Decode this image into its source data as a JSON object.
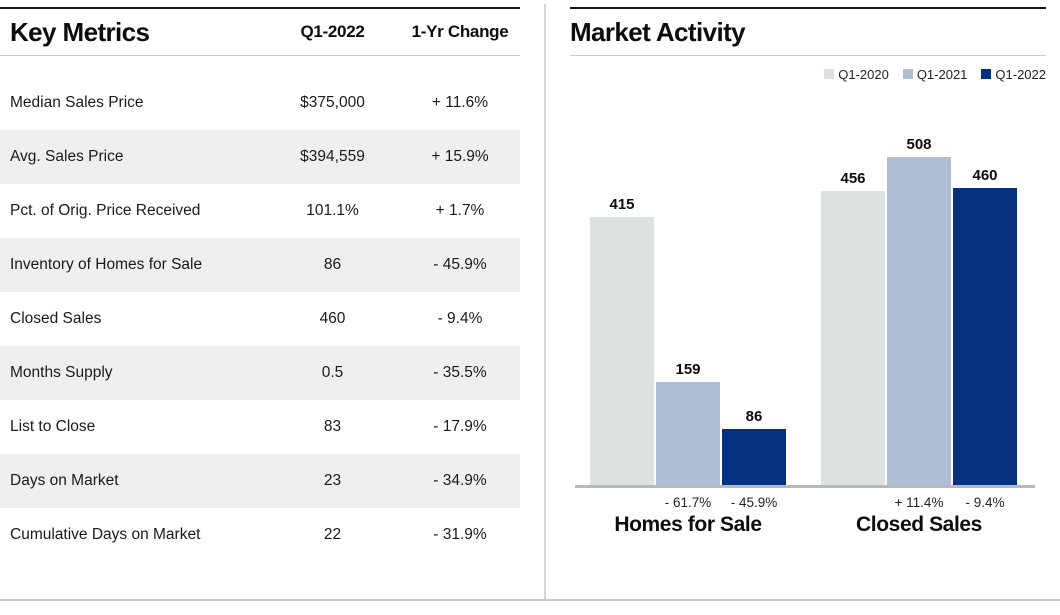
{
  "colors": {
    "q1_2020": "#dde1df",
    "q1_2021": "#afbdd5",
    "q1_2022": "#06317f",
    "row_stripe": "#efefef",
    "rule_dark": "#161616",
    "rule_gray": "#c9c9c9",
    "axis_gray": "#b9b9b9"
  },
  "key_metrics": {
    "title": "Key Metrics",
    "col_headers": [
      "Q1-2022",
      "1-Yr Change"
    ],
    "rows": [
      {
        "label": "Median Sales Price",
        "value": "$375,000",
        "change": "+ 11.6%"
      },
      {
        "label": "Avg. Sales Price",
        "value": "$394,559",
        "change": "+ 15.9%"
      },
      {
        "label": "Pct. of Orig. Price Received",
        "value": "101.1%",
        "change": "+ 1.7%"
      },
      {
        "label": "Inventory of Homes for Sale",
        "value": "86",
        "change": "- 45.9%"
      },
      {
        "label": "Closed Sales",
        "value": "460",
        "change": "- 9.4%"
      },
      {
        "label": "Months Supply",
        "value": "0.5",
        "change": "- 35.5%"
      },
      {
        "label": "List to Close",
        "value": "83",
        "change": "- 17.9%"
      },
      {
        "label": "Days on Market",
        "value": "23",
        "change": "- 34.9%"
      },
      {
        "label": "Cumulative Days on Market",
        "value": "22",
        "change": "- 31.9%"
      }
    ]
  },
  "market_activity": {
    "title": "Market Activity",
    "legend": [
      {
        "label": "Q1-2020",
        "color": "#dde1df"
      },
      {
        "label": "Q1-2021",
        "color": "#afbdd5"
      },
      {
        "label": "Q1-2022",
        "color": "#06317f"
      }
    ]
  },
  "chart_data": {
    "type": "bar",
    "title": "Market Activity",
    "categories": [
      "Homes for Sale",
      "Closed Sales"
    ],
    "series": [
      {
        "name": "Q1-2020",
        "color": "#dde1df",
        "values": [
          415,
          456
        ]
      },
      {
        "name": "Q1-2021",
        "color": "#afbdd5",
        "values": [
          159,
          508
        ]
      },
      {
        "name": "Q1-2022",
        "color": "#06317f",
        "values": [
          86,
          460
        ]
      }
    ],
    "change_labels": [
      [
        "",
        "- 61.7%",
        "- 45.9%"
      ],
      [
        "",
        "+ 11.4%",
        "- 9.4%"
      ]
    ],
    "ylim": [
      0,
      508
    ],
    "grid": false,
    "legend_position": "top-right",
    "bar_value_labels": true
  }
}
